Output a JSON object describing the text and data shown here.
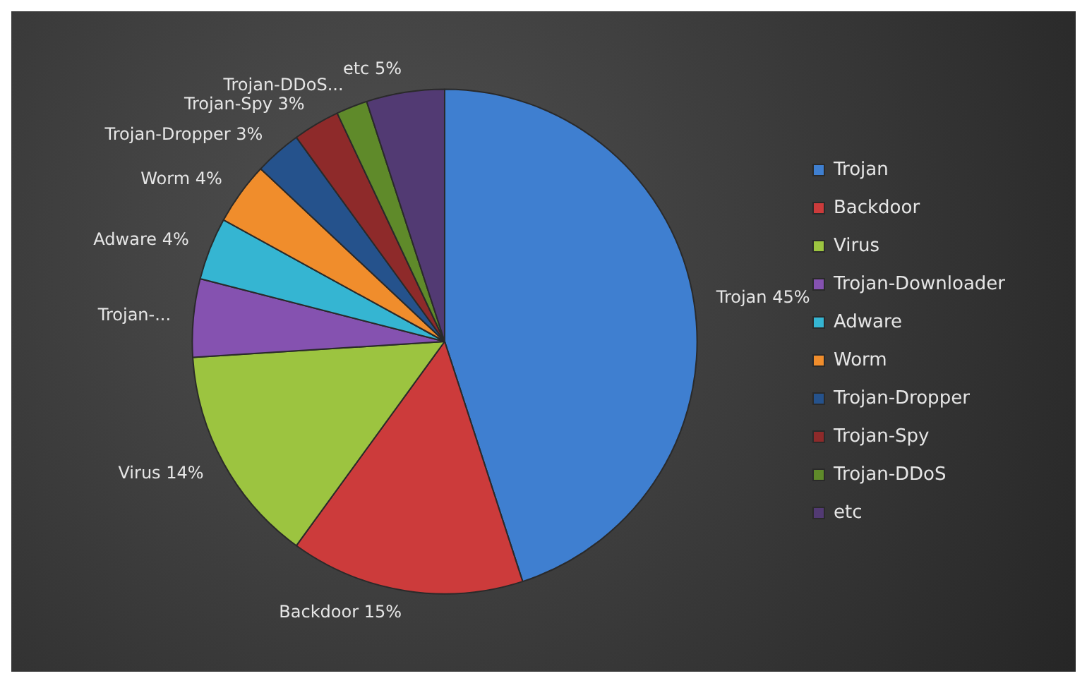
{
  "chart_data": {
    "type": "pie",
    "categories": [
      "Trojan",
      "Backdoor",
      "Virus",
      "Trojan-Downloader",
      "Adware",
      "Worm",
      "Trojan-Dropper",
      "Trojan-Spy",
      "Trojan-DDoS",
      "etc"
    ],
    "values": [
      45,
      15,
      14,
      5,
      4,
      4,
      3,
      3,
      2,
      5
    ],
    "colors": [
      "#3f7fd0",
      "#cc3b3b",
      "#9cc440",
      "#8552b0",
      "#35b5d2",
      "#f08d2c",
      "#25528c",
      "#8e2a2a",
      "#5f8a2a",
      "#523a73"
    ],
    "value_labels": [
      "Trojan 45%",
      "Backdoor 15%",
      "Virus 14%",
      "Trojan-...",
      "Adware 4%",
      "Worm 4%",
      "Trojan-Dropper 3%",
      "Trojan-Spy 3%",
      "Trojan-DDoS...",
      "etc 5%"
    ],
    "legend": "right"
  }
}
